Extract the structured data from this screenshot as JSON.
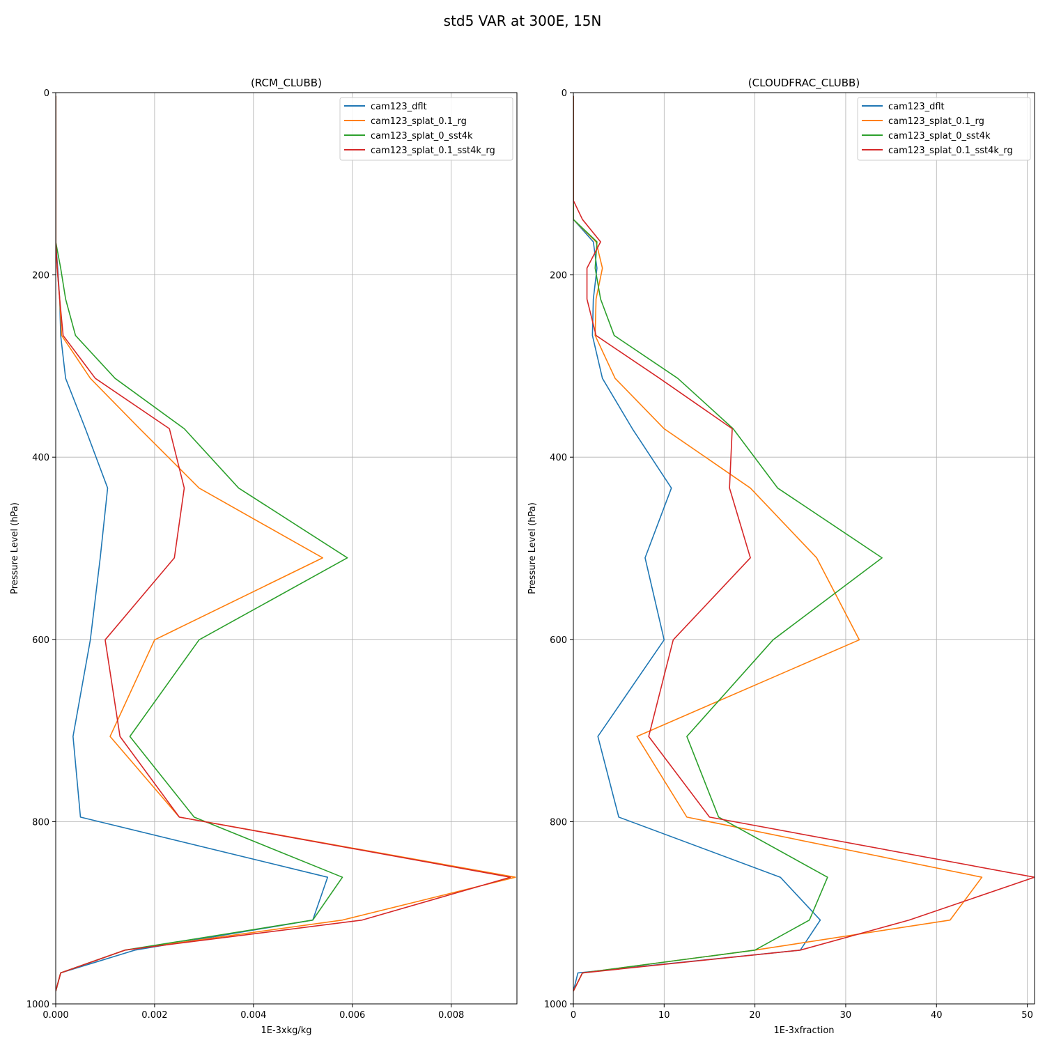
{
  "chart_data": [
    {
      "type": "line",
      "figure_title": "std5 VAR at 300E, 15N",
      "title": "(RCM_CLUBB)",
      "xlabel": "1E-3xkg/kg",
      "ylabel": "Pressure Level (hPa)",
      "xlim": [
        0,
        0.00933
      ],
      "ylim": [
        1000,
        0
      ],
      "xticks": [
        0,
        0.002,
        0.004,
        0.006,
        0.008
      ],
      "xtick_labels": [
        "0.000",
        "0.002",
        "0.004",
        "0.006",
        "0.008"
      ],
      "yticks": [
        0,
        200,
        400,
        600,
        800,
        1000
      ],
      "ytick_labels": [
        "0",
        "200",
        "400",
        "600",
        "800",
        "1000"
      ],
      "legend_position": "top-right",
      "pressure_levels": [
        3.6,
        7.6,
        14.4,
        24.6,
        35.9,
        43.0,
        52.6,
        69.9,
        85.4,
        100.5,
        118.3,
        139.1,
        163.7,
        192.6,
        226.5,
        266.5,
        313.5,
        368.8,
        433.9,
        510.5,
        600.5,
        706.5,
        795.0,
        861.0,
        908.0,
        941.0,
        966.0,
        986.0
      ],
      "series": [
        {
          "name": "cam123_dflt",
          "color": "#1f77b4",
          "values": [
            0,
            0,
            0,
            0,
            0,
            0,
            0,
            0,
            0,
            0,
            0,
            0,
            0,
            4e-05,
            8e-05,
            0.0001,
            0.0002,
            0.0006,
            0.00105,
            0.0009,
            0.0007,
            0.00035,
            0.0005,
            0.0055,
            0.0052,
            0.0016,
            0.0001,
            0
          ]
        },
        {
          "name": "cam123_splat_0.1_rg",
          "color": "#ff7f0e",
          "values": [
            0,
            0,
            0,
            0,
            0,
            0,
            0,
            0,
            0,
            0,
            0,
            0,
            0,
            3e-05,
            8e-05,
            0.00012,
            0.0007,
            0.0017,
            0.0029,
            0.0054,
            0.002,
            0.0011,
            0.0025,
            0.0093,
            0.0058,
            0.0014,
            0.0001,
            0
          ]
        },
        {
          "name": "cam123_splat_0_sst4k",
          "color": "#2ca02c",
          "values": [
            0,
            0,
            0,
            0,
            0,
            0,
            0,
            0,
            0,
            0,
            0,
            0,
            0,
            0.0001,
            0.0002,
            0.0004,
            0.0012,
            0.0026,
            0.0037,
            0.0059,
            0.0029,
            0.0015,
            0.0028,
            0.0058,
            0.0052,
            0.0014,
            0.0001,
            0
          ]
        },
        {
          "name": "cam123_splat_0.1_sst4k_rg",
          "color": "#d62728",
          "values": [
            0,
            0,
            0,
            0,
            0,
            0,
            0,
            0,
            0,
            0,
            0,
            0,
            0,
            3e-05,
            8e-05,
            0.00015,
            0.0008,
            0.0023,
            0.0026,
            0.0024,
            0.001,
            0.0013,
            0.0025,
            0.0092,
            0.0062,
            0.0014,
            0.0001,
            0
          ]
        }
      ]
    },
    {
      "type": "line",
      "title": "(CLOUDFRAC_CLUBB)",
      "xlabel": "1E-3xfraction",
      "ylabel": "Pressure Level (hPa)",
      "xlim": [
        0,
        50.8
      ],
      "ylim": [
        1000,
        0
      ],
      "xticks": [
        0,
        10,
        20,
        30,
        40,
        50
      ],
      "xtick_labels": [
        "0",
        "10",
        "20",
        "30",
        "40",
        "50"
      ],
      "yticks": [
        0,
        200,
        400,
        600,
        800,
        1000
      ],
      "ytick_labels": [
        "0",
        "200",
        "400",
        "600",
        "800",
        "1000"
      ],
      "legend_position": "top-right",
      "pressure_levels": [
        3.6,
        7.6,
        14.4,
        24.6,
        35.9,
        43.0,
        52.6,
        69.9,
        85.4,
        100.5,
        118.3,
        139.1,
        163.7,
        192.6,
        226.5,
        266.5,
        313.5,
        368.8,
        433.9,
        510.5,
        600.5,
        706.5,
        795.0,
        861.0,
        908.0,
        941.0,
        966.0,
        986.0
      ],
      "series": [
        {
          "name": "cam123_dflt",
          "color": "#1f77b4",
          "values": [
            0,
            0,
            0,
            0,
            0,
            0,
            0,
            0,
            0,
            0,
            0,
            0,
            2.2,
            2.6,
            2.2,
            2.1,
            3.2,
            6.5,
            10.8,
            7.9,
            10,
            2.7,
            5,
            22.8,
            27.2,
            25,
            0.5,
            0
          ]
        },
        {
          "name": "cam123_splat_0.1_rg",
          "color": "#ff7f0e",
          "values": [
            0,
            0,
            0,
            0,
            0,
            0,
            0,
            0,
            0,
            0,
            0,
            0,
            2.5,
            3.2,
            2.5,
            2.4,
            4.6,
            10,
            19.5,
            26.8,
            31.5,
            7,
            12.5,
            45,
            41.5,
            20,
            1,
            0
          ]
        },
        {
          "name": "cam123_splat_0_sst4k",
          "color": "#2ca02c",
          "values": [
            0,
            0,
            0,
            0,
            0,
            0,
            0,
            0,
            0,
            0,
            0,
            0,
            2.6,
            2.4,
            3,
            4.5,
            11.5,
            17.6,
            22.5,
            34,
            22,
            12.5,
            16,
            28,
            26,
            20,
            1,
            0
          ]
        },
        {
          "name": "cam123_splat_0.1_sst4k_rg",
          "color": "#d62728",
          "values": [
            0,
            0,
            0,
            0,
            0,
            0,
            0,
            0,
            0,
            0,
            0,
            1,
            3,
            1.5,
            1.5,
            2.5,
            9.5,
            17.5,
            17.2,
            19.5,
            11,
            8.3,
            15,
            50.8,
            37,
            25,
            1,
            0
          ]
        }
      ]
    }
  ]
}
